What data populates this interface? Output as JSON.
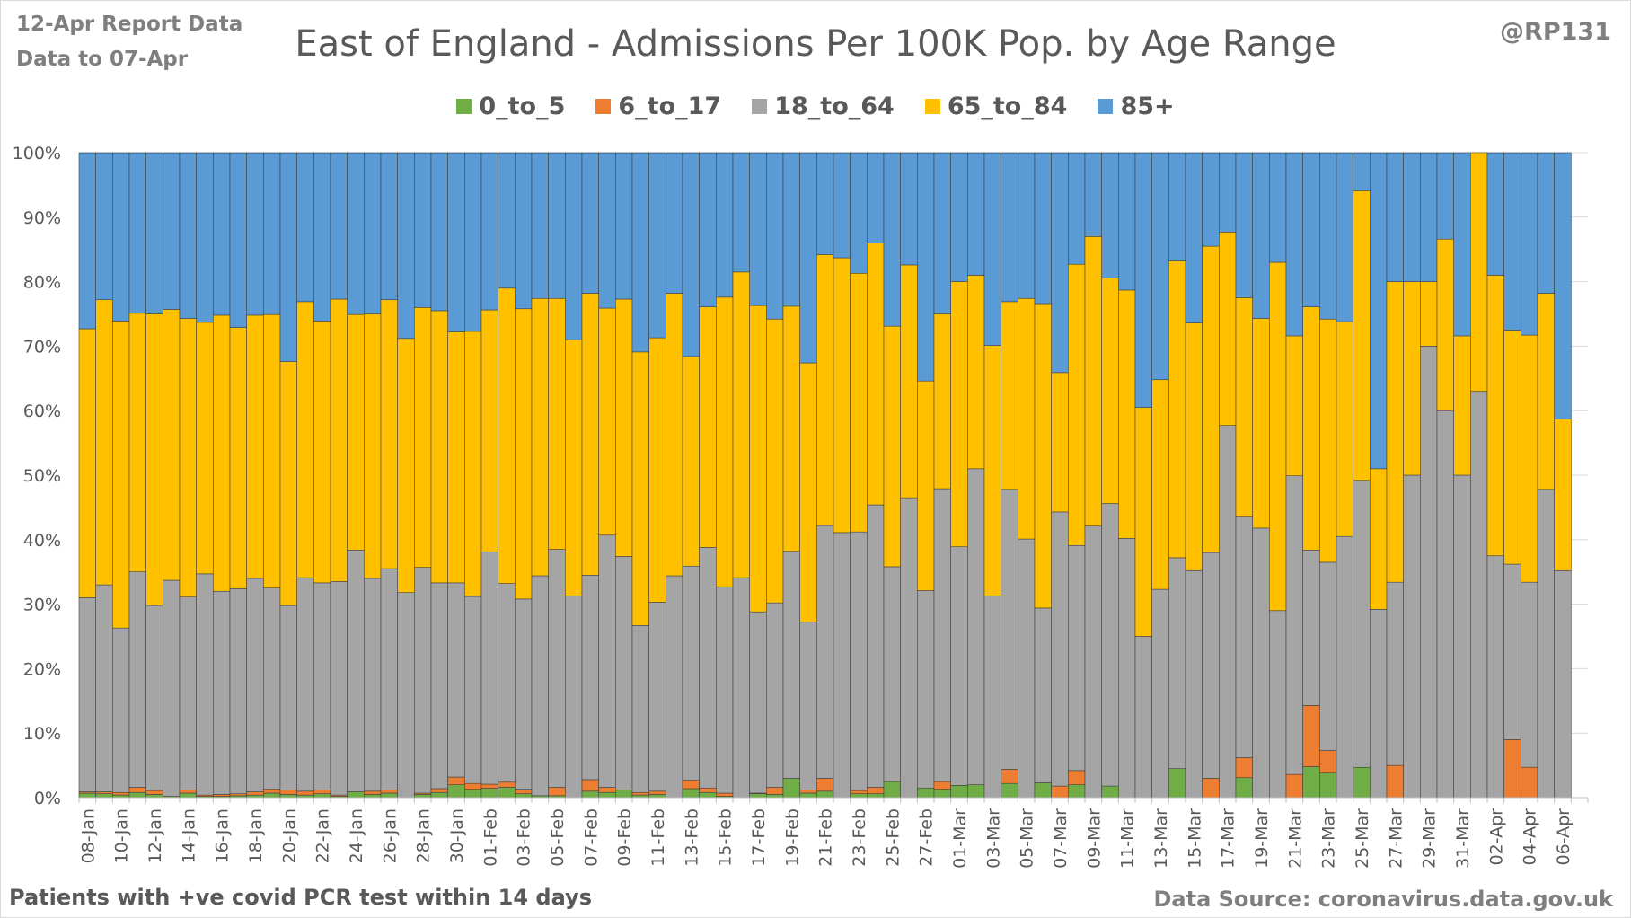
{
  "header": {
    "report_line1": "12-Apr Report Data",
    "report_line2": "Data to 07-Apr",
    "author": "@RP131"
  },
  "footer": {
    "note": "Patients with  +ve covid PCR test within 14 days",
    "source": "Data Source: coronavirus.data.gov.uk"
  },
  "colors": {
    "0_to_5": "#70ad47",
    "6_to_17": "#ed7d31",
    "18_to_64": "#a5a5a5",
    "65_to_84": "#ffc000",
    "85+": "#5b9bd5"
  },
  "chart_data": {
    "type": "bar",
    "stacked": "percent",
    "title": "East of England - Admissions Per 100K Pop. by Age Range",
    "xlabel": "",
    "ylabel": "",
    "ylim": [
      0,
      100
    ],
    "y_ticks": [
      "0%",
      "10%",
      "20%",
      "30%",
      "40%",
      "50%",
      "60%",
      "70%",
      "80%",
      "90%",
      "100%"
    ],
    "grid": true,
    "legend_position": "top",
    "categories": [
      "08-Jan",
      "09-Jan",
      "10-Jan",
      "11-Jan",
      "12-Jan",
      "13-Jan",
      "14-Jan",
      "15-Jan",
      "16-Jan",
      "17-Jan",
      "18-Jan",
      "19-Jan",
      "20-Jan",
      "21-Jan",
      "22-Jan",
      "23-Jan",
      "24-Jan",
      "25-Jan",
      "26-Jan",
      "27-Jan",
      "28-Jan",
      "29-Jan",
      "30-Jan",
      "31-Jan",
      "01-Feb",
      "02-Feb",
      "03-Feb",
      "04-Feb",
      "05-Feb",
      "06-Feb",
      "07-Feb",
      "08-Feb",
      "09-Feb",
      "10-Feb",
      "11-Feb",
      "12-Feb",
      "13-Feb",
      "14-Feb",
      "15-Feb",
      "16-Feb",
      "17-Feb",
      "18-Feb",
      "19-Feb",
      "20-Feb",
      "21-Feb",
      "22-Feb",
      "23-Feb",
      "24-Feb",
      "25-Feb",
      "26-Feb",
      "27-Feb",
      "28-Feb",
      "01-Mar",
      "02-Mar",
      "03-Mar",
      "04-Mar",
      "05-Mar",
      "06-Mar",
      "07-Mar",
      "08-Mar",
      "09-Mar",
      "10-Mar",
      "11-Mar",
      "12-Mar",
      "13-Mar",
      "14-Mar",
      "15-Mar",
      "16-Mar",
      "17-Mar",
      "18-Mar",
      "19-Mar",
      "20-Mar",
      "21-Mar",
      "22-Mar",
      "23-Mar",
      "24-Mar",
      "25-Mar",
      "26-Mar",
      "27-Mar",
      "28-Mar",
      "29-Mar",
      "30-Mar",
      "31-Mar",
      "01-Apr",
      "02-Apr",
      "03-Apr",
      "04-Apr",
      "05-Apr",
      "06-Apr",
      "07-Apr"
    ],
    "series": [
      {
        "name": "0_to_5",
        "values": [
          0.7,
          0.6,
          0.4,
          0.8,
          0.5,
          0.2,
          0.7,
          0.2,
          0.2,
          0.3,
          0.4,
          0.7,
          0.5,
          0.4,
          0.6,
          0.2,
          0.9,
          0.5,
          0.7,
          0,
          0.5,
          0.8,
          2.0,
          1.3,
          1.4,
          1.6,
          0.6,
          0.3,
          0.3,
          0,
          1.0,
          0.8,
          1.2,
          0.4,
          0.5,
          0,
          1.4,
          0.8,
          0.2,
          0,
          0.6,
          0.5,
          3.0,
          0.7,
          1.0,
          0,
          0.6,
          0.6,
          2.5,
          0,
          1.5,
          1.3,
          1.9,
          2.0,
          0,
          2.2,
          0,
          2.3,
          0,
          2.0,
          0,
          1.8,
          0,
          0,
          0,
          4.5,
          0,
          0,
          0,
          3.2,
          0,
          0,
          0,
          4.2,
          3.8,
          0,
          4.7,
          0,
          0,
          0,
          0,
          0,
          0,
          0,
          0,
          0,
          0,
          0,
          0,
          0
        ]
      },
      {
        "name": "6_to_17",
        "values": [
          0.2,
          0.3,
          0.4,
          0.8,
          0.6,
          0,
          0.5,
          0.2,
          0.3,
          0.3,
          0.5,
          0.6,
          0.7,
          0.6,
          0.6,
          0.2,
          0,
          0.5,
          0.5,
          0,
          0.2,
          0.6,
          1.2,
          0.9,
          0.6,
          0.8,
          0.7,
          0,
          1.3,
          0,
          1.8,
          0.8,
          0,
          0.4,
          0.5,
          0,
          1.3,
          0.7,
          0.5,
          0,
          0.1,
          1.1,
          0,
          0.5,
          2.0,
          0,
          0.5,
          1.0,
          0,
          0,
          0,
          1.2,
          0,
          0,
          0,
          2.2,
          0,
          0,
          1.8,
          2.2,
          0,
          0,
          0,
          0,
          0,
          0,
          0,
          3.0,
          0,
          3.2,
          0,
          0,
          3.6,
          8.3,
          3.5,
          0,
          0,
          0,
          5.0,
          0,
          0,
          0,
          0,
          0,
          0,
          9.0,
          4.7,
          0,
          0,
          0
        ]
      },
      {
        "name": "18_to_64",
        "values": [
          30.1,
          32.1,
          25.5,
          33.4,
          28.7,
          33.5,
          29.9,
          34.3,
          31.5,
          31.8,
          33.1,
          31.2,
          28.6,
          33.1,
          32.1,
          33.1,
          37.5,
          33.0,
          34.3,
          31.8,
          35.0,
          31.9,
          30.1,
          29.0,
          34.6,
          30.8,
          29.5,
          34.1,
          36.9,
          31.3,
          31.7,
          39.1,
          36.2,
          25.9,
          29.3,
          34.4,
          33.2,
          37.3,
          32.0,
          34.1,
          28.1,
          28.6,
          35.2,
          26.0,
          39.2,
          41.1,
          40.1,
          43.8,
          33.3,
          46.5,
          30.6,
          45.4,
          37.0,
          49.0,
          31.3,
          43.4,
          40.1,
          27.1,
          42.5,
          34.9,
          42.1,
          43.8,
          40.2,
          25.0,
          32.3,
          32.7,
          35.2,
          35.0,
          57.7,
          38.5,
          41.8,
          29.0,
          46.3,
          21.1,
          29.2,
          40.5,
          44.5,
          29.2,
          28.4,
          50.0,
          70.0,
          60.0,
          50.0,
          63.0,
          37.5,
          27.2,
          28.6,
          47.8,
          35.2,
          0
        ]
      },
      {
        "name": "65_to_84",
        "values": [
          41.7,
          44.2,
          47.6,
          40.1,
          45.2,
          42.0,
          43.2,
          39.0,
          42.8,
          40.5,
          40.8,
          42.4,
          37.8,
          42.8,
          40.6,
          43.8,
          36.5,
          41.0,
          41.7,
          39.4,
          40.3,
          42.2,
          38.9,
          41.1,
          36.0,
          45.8,
          45.0,
          43.0,
          38.9,
          39.7,
          43.7,
          35.2,
          39.9,
          42.4,
          41.0,
          43.8,
          32.5,
          37.3,
          44.9,
          47.4,
          47.5,
          44.0,
          38.0,
          40.2,
          42.0,
          42.6,
          40.1,
          40.6,
          37.3,
          36.1,
          32.5,
          27.1,
          41.1,
          30.0,
          38.8,
          29.1,
          37.3,
          47.2,
          21.6,
          43.6,
          44.9,
          35.0,
          38.5,
          35.5,
          32.5,
          46.0,
          38.4,
          47.5,
          30.0,
          35.1,
          32.5,
          54.0,
          21.7,
          33.0,
          37.7,
          33.3,
          44.9,
          21.8,
          46.6,
          30.0,
          10.0,
          26.6,
          21.6,
          37.0,
          43.5,
          36.3,
          38.2,
          30.4,
          23.5,
          0
        ]
      },
      {
        "name": "85+",
        "values": [
          27.3,
          22.8,
          26.1,
          24.9,
          25.0,
          24.3,
          25.7,
          26.3,
          25.2,
          27.1,
          25.2,
          25.1,
          32.4,
          23.1,
          26.1,
          22.7,
          25.1,
          25.0,
          22.8,
          28.8,
          24.0,
          24.5,
          27.8,
          27.7,
          23.4,
          21.0,
          24.2,
          22.6,
          22.6,
          29.0,
          21.8,
          24.1,
          22.7,
          30.9,
          28.7,
          21.8,
          31.6,
          23.9,
          22.4,
          18.5,
          23.7,
          25.8,
          23.8,
          32.6,
          15.8,
          16.3,
          18.7,
          14.0,
          26.9,
          17.4,
          35.4,
          25.0,
          20.0,
          19.0,
          29.9,
          23.1,
          22.6,
          23.4,
          34.1,
          17.3,
          13.0,
          19.4,
          21.3,
          39.5,
          35.2,
          16.8,
          26.4,
          14.5,
          12.3,
          23.2,
          25.7,
          17.0,
          28.4,
          20.9,
          25.8,
          26.2,
          5.9,
          49.0,
          20.0,
          20.0,
          20.0,
          13.4,
          28.4,
          0,
          19.0,
          27.5,
          28.2,
          21.8,
          41.3,
          0
        ]
      }
    ],
    "x_tick_labels_every": 2
  }
}
